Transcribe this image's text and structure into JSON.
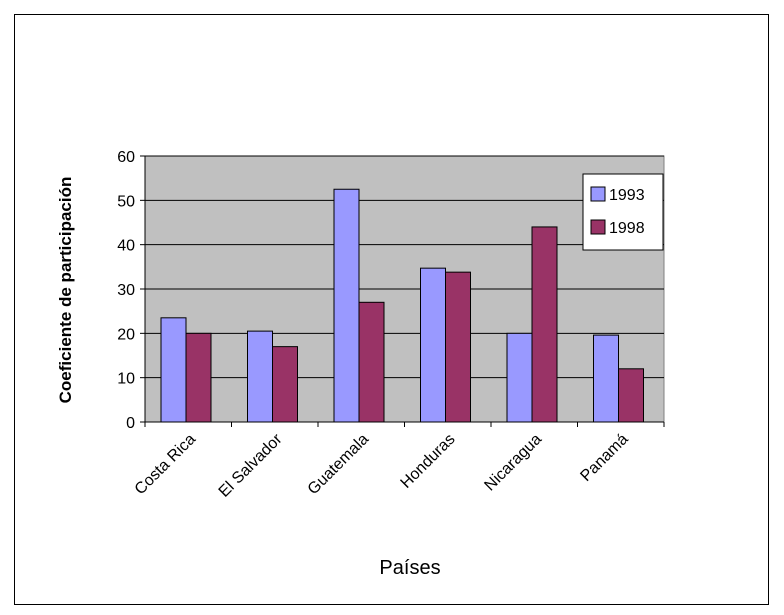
{
  "chart_data": {
    "type": "bar",
    "title": "",
    "xlabel": "Países",
    "ylabel": "Coeficiente de participación",
    "ylim": [
      0,
      60
    ],
    "yticks": [
      0,
      10,
      20,
      30,
      40,
      50,
      60
    ],
    "grid": true,
    "legend_position": "top-right",
    "categories": [
      "Costa Rica",
      "El Salvador",
      "Guatemala",
      "Honduras",
      "Nicaragua",
      "Panamá"
    ],
    "series": [
      {
        "name": "1993",
        "color": "#9999ff",
        "values": [
          23.5,
          20.5,
          52.5,
          34.7,
          20.0,
          19.6
        ]
      },
      {
        "name": "1998",
        "color": "#993366",
        "values": [
          20.0,
          17.0,
          27.0,
          33.8,
          44.0,
          12.0
        ]
      }
    ],
    "plot_background": "#c0c0c0"
  }
}
